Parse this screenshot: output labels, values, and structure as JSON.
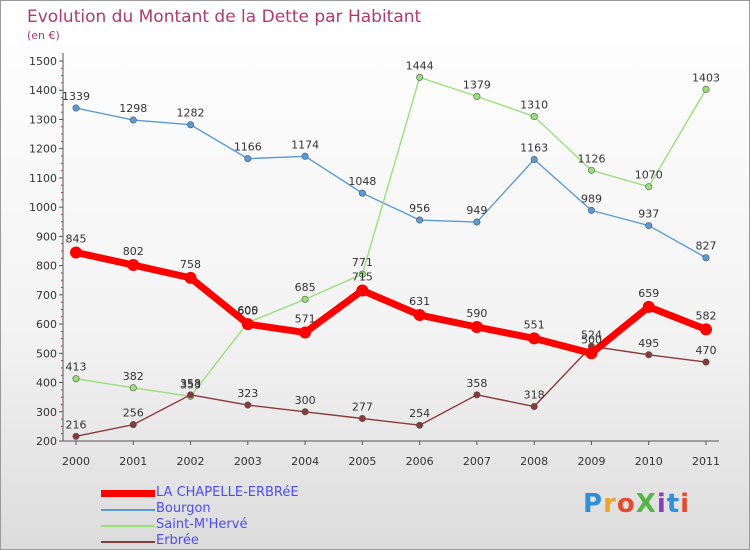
{
  "header": {
    "title": "Evolution du Montant de la Dette par Habitant",
    "subtitle": "(en €)"
  },
  "logo": {
    "text": "ProXiti",
    "colors": [
      "#2f8fd8",
      "#f2a12a",
      "#e64a2e",
      "#55b548",
      "#8a3fb8",
      "#2f8fd8",
      "#e64a2e"
    ]
  },
  "chart_data": {
    "type": "line",
    "x": [
      "2000",
      "2001",
      "2002",
      "2003",
      "2004",
      "2005",
      "2006",
      "2007",
      "2008",
      "2009",
      "2010",
      "2011"
    ],
    "ylim": [
      200,
      1500
    ],
    "yticks": [
      200,
      300,
      400,
      500,
      600,
      700,
      800,
      900,
      1000,
      1100,
      1200,
      1300,
      1400,
      1500
    ],
    "grid": false,
    "legend_position": "bottom-left",
    "series": [
      {
        "name": "LA CHAPELLE-ERBRéE",
        "color": "#ff0000",
        "values": [
          845,
          802,
          758,
          600,
          571,
          715,
          631,
          590,
          551,
          500,
          659,
          582
        ]
      },
      {
        "name": "Bourgon",
        "color": "#5a9bd5",
        "values": [
          1339,
          1298,
          1282,
          1166,
          1174,
          1048,
          956,
          949,
          1163,
          989,
          937,
          827
        ]
      },
      {
        "name": "Saint-M'Hervé",
        "color": "#99e07a",
        "values": [
          413,
          382,
          353,
          605,
          685,
          771,
          1444,
          1379,
          1310,
          1126,
          1070,
          1403
        ]
      },
      {
        "name": "Erbrée",
        "color": "#8b3a3a",
        "values": [
          216,
          256,
          358,
          323,
          300,
          277,
          254,
          358,
          318,
          524,
          495,
          470
        ]
      }
    ]
  }
}
